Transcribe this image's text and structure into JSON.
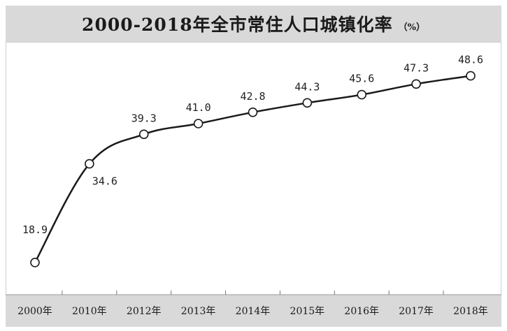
{
  "chart_data": {
    "type": "line",
    "title": "2000-2018年全市常住人口城镇化率",
    "title_unit": "（%）",
    "xlabel": "",
    "ylabel": "",
    "categories": [
      "2000年",
      "2010年",
      "2012年",
      "2013年",
      "2014年",
      "2015年",
      "2016年",
      "2017年",
      "2018年"
    ],
    "series": [
      {
        "values": [
          18.9,
          34.6,
          39.3,
          41.0,
          42.8,
          44.3,
          45.6,
          47.3,
          48.6
        ],
        "labels": [
          "18.9",
          "34.6",
          "39.3",
          "41.0",
          "42.8",
          "44.3",
          "45.6",
          "47.3",
          "48.6"
        ]
      }
    ],
    "ylim": [
      14,
      52
    ],
    "grid": false,
    "legend": "none",
    "colors": {
      "line": "#1a1a1a",
      "marker_fill": "#ffffff",
      "title_band": "#d9d9d9",
      "axis_band": "#d9d9d9"
    }
  }
}
